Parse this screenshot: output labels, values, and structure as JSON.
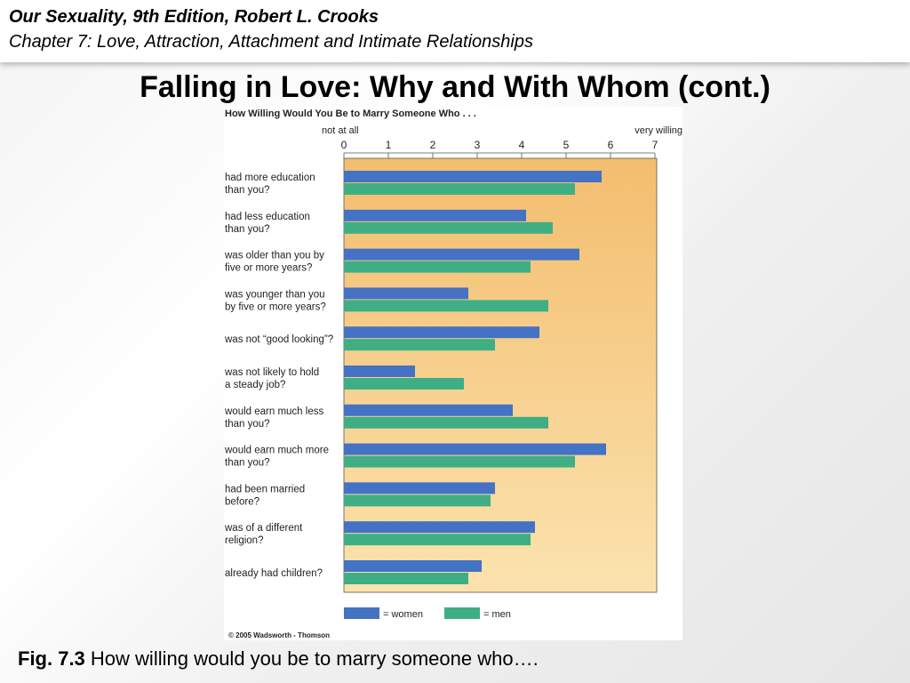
{
  "header": {
    "book": "Our Sexuality, 9th Edition, Robert L. Crooks",
    "chapter": "Chapter 7: Love, Attraction, Attachment and Intimate Relationships"
  },
  "slide_title": "Falling in Love: Why and With Whom (cont.)",
  "caption": {
    "lead": "Fig. 7.3",
    "text": "How willing would you be to marry someone who…."
  },
  "copyright": "© 2005 Wadsworth - Thomson",
  "colors": {
    "women": "#4472c4",
    "men": "#3fae84",
    "plot_background_top": "#f3bd6e",
    "plot_background_bottom": "#fbe3ae"
  },
  "chart_data": {
    "type": "bar",
    "orientation": "horizontal",
    "title": "How Willing Would You Be to Marry Someone Who . . .",
    "scale_low_label": "not at all",
    "scale_high_label": "very willing",
    "xlim": [
      0,
      7
    ],
    "ticks": [
      "0",
      "1",
      "2",
      "3",
      "4",
      "5",
      "6",
      "7"
    ],
    "grid": false,
    "legend_placement": "bottom-left",
    "categories": [
      [
        "had more education",
        "than you?"
      ],
      [
        "had less education",
        "than you?"
      ],
      [
        "was older than you by",
        "five or more years?"
      ],
      [
        "was younger than you",
        "by five or more years?"
      ],
      [
        "was not “good looking”?"
      ],
      [
        "was not likely to hold",
        "a steady job?"
      ],
      [
        "would earn much less",
        "than you?"
      ],
      [
        "would earn much more",
        "than you?"
      ],
      [
        "had been married",
        "before?"
      ],
      [
        "was of a different",
        "religion?"
      ],
      [
        "already had children?"
      ]
    ],
    "series": [
      {
        "name": "= women",
        "values": [
          5.8,
          4.1,
          5.3,
          2.8,
          4.4,
          1.6,
          3.8,
          5.9,
          3.4,
          4.3,
          3.1
        ]
      },
      {
        "name": "= men",
        "values": [
          5.2,
          4.7,
          4.2,
          4.6,
          3.4,
          2.7,
          4.6,
          5.2,
          3.3,
          4.2,
          2.8
        ]
      }
    ]
  }
}
